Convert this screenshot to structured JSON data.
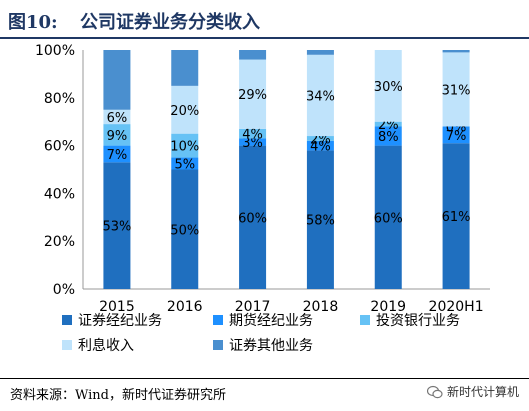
{
  "figure": {
    "label": "图10:",
    "title": "公司证券业务分类收入"
  },
  "chart_data": {
    "type": "bar",
    "stacked": true,
    "categories": [
      "2015",
      "2016",
      "2017",
      "2018",
      "2019",
      "2020H1"
    ],
    "ylim": [
      0,
      100
    ],
    "yticks": [
      "0%",
      "20%",
      "40%",
      "60%",
      "80%",
      "100%"
    ],
    "grid": false,
    "legend_position": "bottom",
    "series": [
      {
        "name": "证券经纪业务",
        "color": "#1f6fbf",
        "values": [
          53,
          50,
          60,
          58,
          60,
          61
        ],
        "labels": [
          "53%",
          "50%",
          "60%",
          "58%",
          "60%",
          "61%"
        ]
      },
      {
        "name": "期货经纪业务",
        "color": "#1e90ff",
        "values": [
          7,
          5,
          3,
          4,
          8,
          7
        ],
        "labels": [
          "7%",
          "5%",
          "3%",
          "4%",
          "8%",
          "7%"
        ]
      },
      {
        "name": "投资银行业务",
        "color": "#66c2f5",
        "values": [
          9,
          10,
          4,
          2,
          2,
          0
        ],
        "labels": [
          "9%",
          "10%",
          "4%",
          "2%",
          "2%",
          "0%"
        ]
      },
      {
        "name": "利息收入",
        "color": "#bfe3fb",
        "values": [
          6,
          20,
          29,
          34,
          30,
          31
        ],
        "labels": [
          "6%",
          "20%",
          "29%",
          "34%",
          "30%",
          "31%"
        ]
      },
      {
        "name": "证券其他业务",
        "color": "#4a8fcf",
        "values": [
          25,
          15,
          4,
          2,
          0,
          1
        ],
        "labels": [
          "",
          "",
          "",
          "",
          "",
          ""
        ]
      }
    ]
  },
  "footer": {
    "source": "资料来源：Wind，新时代证券研究所",
    "watermark": "新时代计算机"
  }
}
